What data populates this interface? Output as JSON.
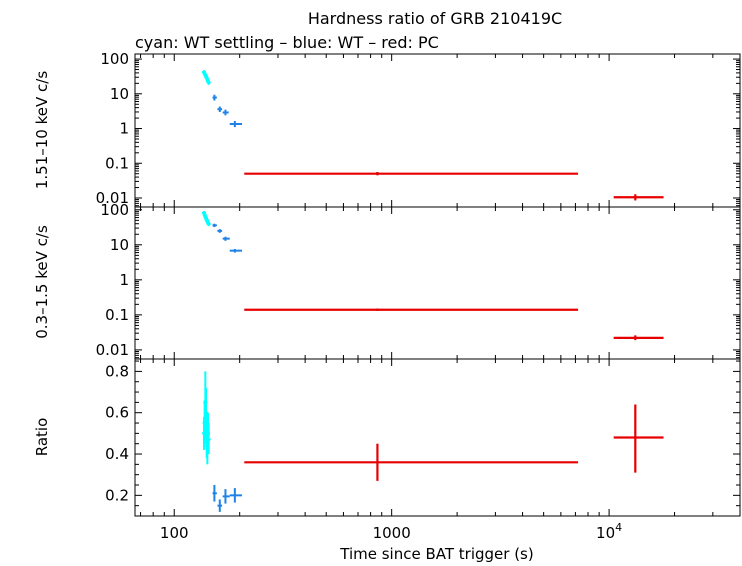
{
  "chart_data": {
    "type": "scatter",
    "title": "Hardness ratio of GRB 210419C",
    "subtitle": "cyan: WT settling – blue: WT – red: PC",
    "xlabel": "Time since BAT trigger (s)",
    "x_scale": "log",
    "xlim": [
      66,
      40000
    ],
    "x_ticks": [
      {
        "value": 100,
        "label": "100"
      },
      {
        "value": 1000,
        "label": "1000"
      },
      {
        "value": 10000,
        "label": "10",
        "exponent": "4"
      }
    ],
    "colors": {
      "wt_settling": "#00ffff",
      "wt": "#1e82e6",
      "pc": "#e60000"
    },
    "panels": [
      {
        "name": "hard",
        "ylabel": "1.51–10 keV c/s",
        "y_scale": "log",
        "ylim": [
          0.0055,
          140
        ],
        "y_ticks": [
          {
            "value": 100,
            "label": "100"
          },
          {
            "value": 10,
            "label": "10"
          },
          {
            "value": 1,
            "label": "1"
          },
          {
            "value": 0.1,
            "label": "0.1"
          },
          {
            "value": 0.01,
            "label": "0.01"
          }
        ],
        "series": [
          {
            "key": "wt_settling",
            "points": [
              {
                "x": 137,
                "y": 42,
                "ylo": 36,
                "yhi": 48
              },
              {
                "x": 138,
                "y": 38,
                "ylo": 33,
                "yhi": 44
              },
              {
                "x": 139,
                "y": 35,
                "ylo": 30,
                "yhi": 40
              },
              {
                "x": 140,
                "y": 32,
                "ylo": 28,
                "yhi": 37
              },
              {
                "x": 141,
                "y": 29,
                "ylo": 25,
                "yhi": 34
              },
              {
                "x": 142,
                "y": 26,
                "ylo": 22,
                "yhi": 30
              },
              {
                "x": 143,
                "y": 23,
                "ylo": 20,
                "yhi": 27
              },
              {
                "x": 144,
                "y": 21,
                "ylo": 18,
                "yhi": 24
              }
            ]
          },
          {
            "key": "wt",
            "points": [
              {
                "x": 153,
                "xlo": 150,
                "xhi": 157,
                "y": 7.8,
                "ylo": 6.4,
                "yhi": 9.4
              },
              {
                "x": 162,
                "xlo": 158,
                "xhi": 166,
                "y": 3.6,
                "ylo": 3.0,
                "yhi": 4.3
              },
              {
                "x": 172,
                "xlo": 167,
                "xhi": 178,
                "y": 2.9,
                "ylo": 2.4,
                "yhi": 3.5
              },
              {
                "x": 190,
                "xlo": 180,
                "xhi": 205,
                "y": 1.35,
                "ylo": 1.1,
                "yhi": 1.65
              }
            ]
          },
          {
            "key": "pc",
            "points": [
              {
                "x": 860,
                "xlo": 210,
                "xhi": 7200,
                "y": 0.05,
                "ylo": 0.045,
                "yhi": 0.056
              },
              {
                "x": 13200,
                "xlo": 10500,
                "xhi": 17800,
                "y": 0.0105,
                "ylo": 0.0085,
                "yhi": 0.0128
              }
            ]
          }
        ]
      },
      {
        "name": "soft",
        "ylabel": "0.3–1.5 keV c/s",
        "y_scale": "log",
        "ylim": [
          0.0055,
          120
        ],
        "y_ticks": [
          {
            "value": 100,
            "label": "100"
          },
          {
            "value": 10,
            "label": "10"
          },
          {
            "value": 1,
            "label": "1"
          },
          {
            "value": 0.1,
            "label": "0.1"
          },
          {
            "value": 0.01,
            "label": "0.01"
          }
        ],
        "series": [
          {
            "key": "wt_settling",
            "points": [
              {
                "x": 137,
                "y": 82,
                "ylo": 72,
                "yhi": 92
              },
              {
                "x": 138,
                "y": 72,
                "ylo": 64,
                "yhi": 81
              },
              {
                "x": 139,
                "y": 64,
                "ylo": 56,
                "yhi": 72
              },
              {
                "x": 140,
                "y": 58,
                "ylo": 51,
                "yhi": 65
              },
              {
                "x": 141,
                "y": 52,
                "ylo": 46,
                "yhi": 59
              },
              {
                "x": 142,
                "y": 47,
                "ylo": 41,
                "yhi": 53
              },
              {
                "x": 143,
                "y": 43,
                "ylo": 38,
                "yhi": 48
              },
              {
                "x": 144,
                "y": 39,
                "ylo": 34,
                "yhi": 44
              }
            ]
          },
          {
            "key": "wt",
            "points": [
              {
                "x": 153,
                "xlo": 150,
                "xhi": 157,
                "y": 36,
                "ylo": 32,
                "yhi": 40
              },
              {
                "x": 162,
                "xlo": 158,
                "xhi": 166,
                "y": 25,
                "ylo": 22,
                "yhi": 28
              },
              {
                "x": 172,
                "xlo": 167,
                "xhi": 180,
                "y": 15,
                "ylo": 13,
                "yhi": 17
              },
              {
                "x": 190,
                "xlo": 180,
                "xhi": 205,
                "y": 6.8,
                "ylo": 6.0,
                "yhi": 7.6
              }
            ]
          },
          {
            "key": "pc",
            "points": [
              {
                "x": 860,
                "xlo": 210,
                "xhi": 7200,
                "y": 0.14,
                "ylo": 0.13,
                "yhi": 0.152
              },
              {
                "x": 13200,
                "xlo": 10500,
                "xhi": 17800,
                "y": 0.022,
                "ylo": 0.019,
                "yhi": 0.026
              }
            ]
          }
        ]
      },
      {
        "name": "ratio",
        "ylabel": "Ratio",
        "y_scale": "linear",
        "ylim": [
          0.1,
          0.86
        ],
        "y_ticks": [
          {
            "value": 0.8,
            "label": "0.8"
          },
          {
            "value": 0.6,
            "label": "0.6"
          },
          {
            "value": 0.4,
            "label": "0.4"
          },
          {
            "value": 0.2,
            "label": "0.2"
          }
        ],
        "series": [
          {
            "key": "wt_settling",
            "points": [
              {
                "x": 137,
                "y": 0.5,
                "ylo": 0.42,
                "yhi": 0.58
              },
              {
                "x": 138,
                "y": 0.55,
                "ylo": 0.45,
                "yhi": 0.66
              },
              {
                "x": 139,
                "y": 0.65,
                "ylo": 0.5,
                "yhi": 0.8
              },
              {
                "x": 140,
                "y": 0.6,
                "ylo": 0.48,
                "yhi": 0.72
              },
              {
                "x": 141,
                "y": 0.48,
                "ylo": 0.38,
                "yhi": 0.58
              },
              {
                "x": 142,
                "y": 0.44,
                "ylo": 0.35,
                "yhi": 0.52
              },
              {
                "x": 143,
                "y": 0.5,
                "ylo": 0.42,
                "yhi": 0.6
              },
              {
                "x": 144,
                "y": 0.47,
                "ylo": 0.4,
                "yhi": 0.55
              }
            ]
          },
          {
            "key": "wt",
            "points": [
              {
                "x": 153,
                "xlo": 150,
                "xhi": 157,
                "y": 0.21,
                "ylo": 0.17,
                "yhi": 0.25
              },
              {
                "x": 162,
                "xlo": 158,
                "xhi": 166,
                "y": 0.15,
                "ylo": 0.12,
                "yhi": 0.18
              },
              {
                "x": 172,
                "xlo": 167,
                "xhi": 180,
                "y": 0.195,
                "ylo": 0.16,
                "yhi": 0.23
              },
              {
                "x": 190,
                "xlo": 180,
                "xhi": 205,
                "y": 0.2,
                "ylo": 0.165,
                "yhi": 0.235
              }
            ]
          },
          {
            "key": "pc",
            "points": [
              {
                "x": 860,
                "xlo": 210,
                "xhi": 7200,
                "y": 0.36,
                "ylo": 0.27,
                "yhi": 0.45
              },
              {
                "x": 13200,
                "xlo": 10500,
                "xhi": 17800,
                "y": 0.48,
                "ylo": 0.31,
                "yhi": 0.64
              }
            ]
          }
        ]
      }
    ]
  }
}
